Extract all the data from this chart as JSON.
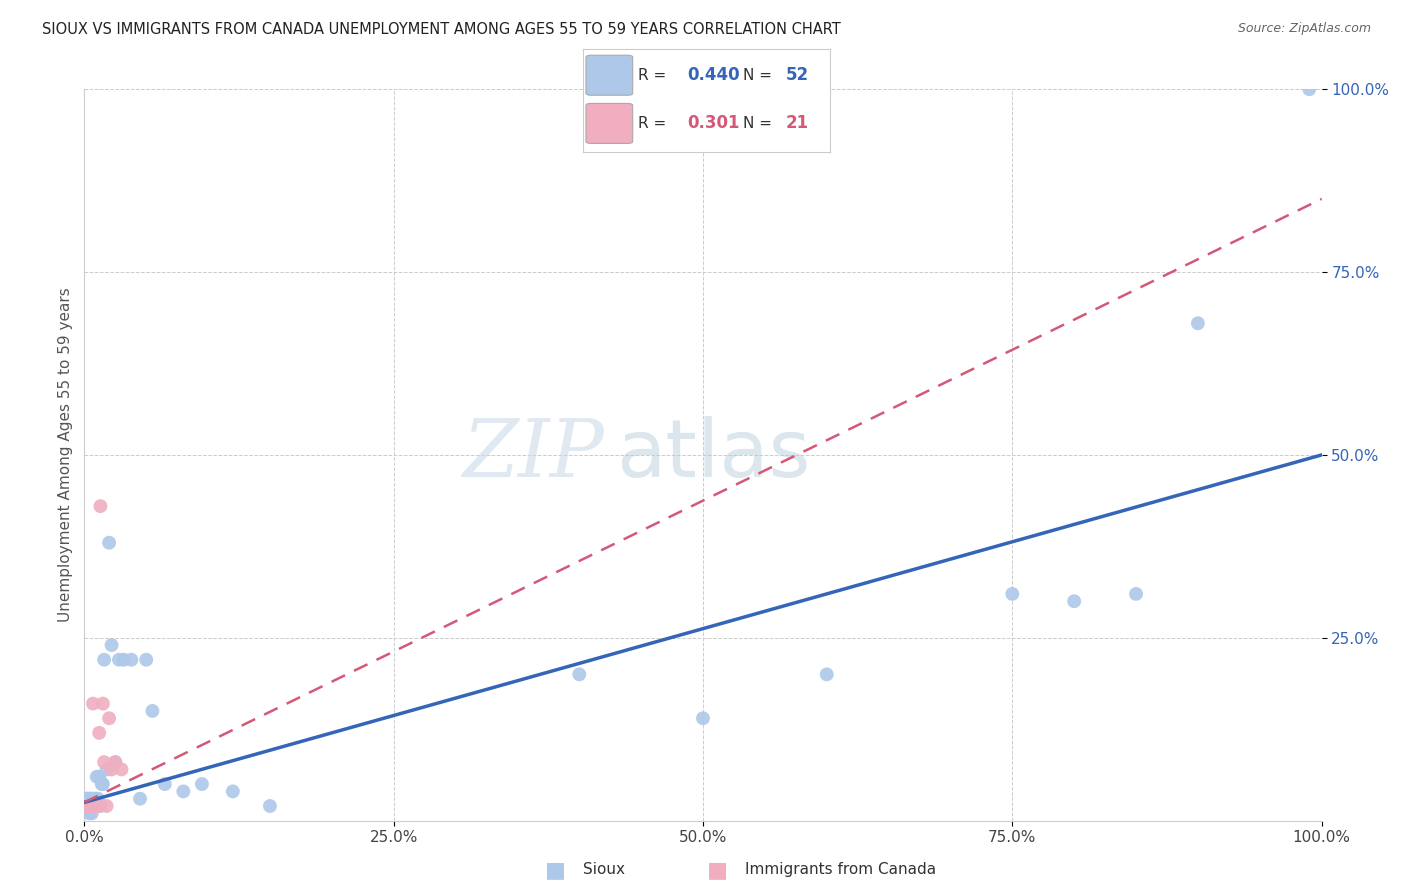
{
  "title": "SIOUX VS IMMIGRANTS FROM CANADA UNEMPLOYMENT AMONG AGES 55 TO 59 YEARS CORRELATION CHART",
  "source": "Source: ZipAtlas.com",
  "ylabel": "Unemployment Among Ages 55 to 59 years",
  "xlim": [
    0,
    1.0
  ],
  "ylim": [
    0,
    1.0
  ],
  "xticks": [
    0.0,
    0.25,
    0.5,
    0.75,
    1.0
  ],
  "xticklabels": [
    "0.0%",
    "25.0%",
    "50.0%",
    "75.0%",
    "100.0%"
  ],
  "yticks": [
    0.25,
    0.5,
    0.75,
    1.0
  ],
  "yticklabels": [
    "25.0%",
    "50.0%",
    "75.0%",
    "100.0%"
  ],
  "sioux_R": 0.44,
  "sioux_N": 52,
  "canada_R": 0.301,
  "canada_N": 21,
  "sioux_color": "#adc8e8",
  "sioux_line_color": "#3565b8",
  "canada_color": "#f0aec0",
  "canada_line_color": "#d45878",
  "watermark_zip": "ZIP",
  "watermark_atlas": "atlas",
  "background_color": "#ffffff",
  "sioux_x": [
    0.001,
    0.002,
    0.002,
    0.003,
    0.003,
    0.003,
    0.004,
    0.004,
    0.004,
    0.005,
    0.005,
    0.005,
    0.005,
    0.006,
    0.006,
    0.007,
    0.007,
    0.008,
    0.008,
    0.009,
    0.009,
    0.01,
    0.01,
    0.011,
    0.012,
    0.013,
    0.014,
    0.015,
    0.016,
    0.018,
    0.02,
    0.022,
    0.025,
    0.028,
    0.032,
    0.038,
    0.045,
    0.05,
    0.055,
    0.065,
    0.08,
    0.095,
    0.12,
    0.15,
    0.4,
    0.5,
    0.6,
    0.75,
    0.8,
    0.85,
    0.9,
    0.99
  ],
  "sioux_y": [
    0.03,
    0.02,
    0.03,
    0.02,
    0.02,
    0.03,
    0.02,
    0.01,
    0.02,
    0.02,
    0.02,
    0.02,
    0.03,
    0.01,
    0.03,
    0.02,
    0.03,
    0.02,
    0.02,
    0.02,
    0.03,
    0.02,
    0.06,
    0.03,
    0.06,
    0.02,
    0.05,
    0.05,
    0.22,
    0.07,
    0.38,
    0.24,
    0.08,
    0.22,
    0.22,
    0.22,
    0.03,
    0.22,
    0.15,
    0.05,
    0.04,
    0.05,
    0.04,
    0.02,
    0.2,
    0.14,
    0.2,
    0.31,
    0.3,
    0.31,
    0.68,
    1.0
  ],
  "canada_x": [
    0.002,
    0.003,
    0.004,
    0.005,
    0.005,
    0.006,
    0.007,
    0.007,
    0.008,
    0.009,
    0.01,
    0.011,
    0.012,
    0.013,
    0.015,
    0.016,
    0.018,
    0.02,
    0.022,
    0.025,
    0.03
  ],
  "canada_y": [
    0.02,
    0.02,
    0.02,
    0.02,
    0.02,
    0.02,
    0.16,
    0.02,
    0.02,
    0.02,
    0.02,
    0.02,
    0.12,
    0.43,
    0.16,
    0.08,
    0.02,
    0.14,
    0.07,
    0.08,
    0.07
  ],
  "sioux_regline_x": [
    0.0,
    1.0
  ],
  "sioux_regline_y": [
    0.025,
    0.5
  ],
  "canada_regline_x": [
    0.0,
    1.0
  ],
  "canada_regline_y": [
    0.025,
    0.85
  ]
}
